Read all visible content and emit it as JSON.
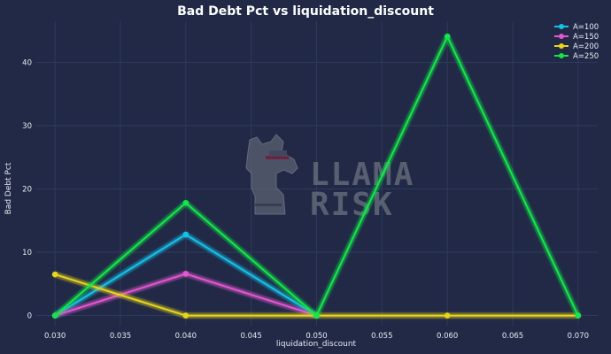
{
  "chart_data": {
    "type": "line",
    "title": "Bad Debt Pct vs liquidation_discount",
    "xlabel": "liquidation_discount",
    "ylabel": "Bad Debt Pct",
    "xlim": [
      0.0285,
      0.0715
    ],
    "ylim": [
      -1.6,
      46.5
    ],
    "x_ticks": [
      "0.030",
      "0.035",
      "0.040",
      "0.045",
      "0.050",
      "0.055",
      "0.060",
      "0.065",
      "0.070"
    ],
    "x_tick_values": [
      0.03,
      0.035,
      0.04,
      0.045,
      0.05,
      0.055,
      0.06,
      0.065,
      0.07
    ],
    "y_ticks": [
      "0",
      "10",
      "20",
      "30",
      "40"
    ],
    "y_tick_values": [
      0,
      10,
      20,
      30,
      40
    ],
    "grid": true,
    "legend_position": "top-right",
    "series": [
      {
        "name": "A=100",
        "color": "#18c0e8",
        "x": [
          0.03,
          0.04,
          0.05
        ],
        "y": [
          0,
          12.8,
          0
        ]
      },
      {
        "name": "A=150",
        "color": "#e357d0",
        "x": [
          0.03,
          0.04,
          0.05
        ],
        "y": [
          0,
          6.6,
          0
        ]
      },
      {
        "name": "A=200",
        "color": "#e8d51c",
        "x": [
          0.03,
          0.04,
          0.05,
          0.06,
          0.07
        ],
        "y": [
          6.5,
          0,
          0,
          0,
          0
        ]
      },
      {
        "name": "A=250",
        "color": "#12e64a",
        "x": [
          0.03,
          0.04,
          0.05,
          0.06,
          0.07
        ],
        "y": [
          0,
          17.8,
          0,
          44.1,
          0
        ]
      }
    ]
  },
  "watermark": {
    "line1": "LLAMA",
    "line2": "RISK",
    "logo_icon": "llama-logo-icon"
  }
}
